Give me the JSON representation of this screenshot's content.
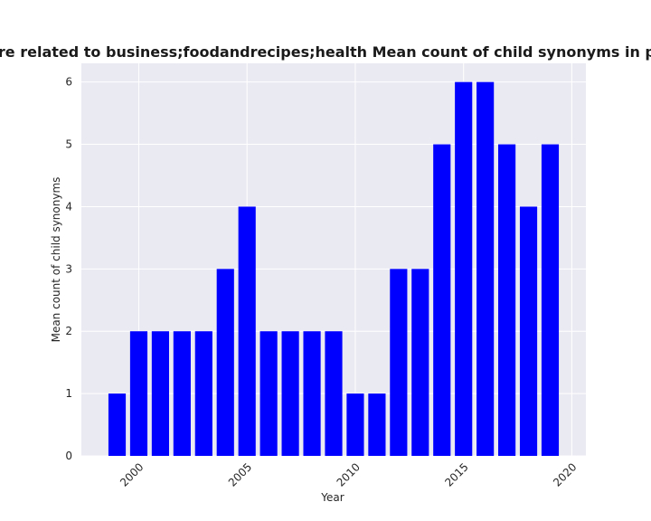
{
  "chart_data": {
    "type": "bar",
    "title": "Categories are related to business;foodandrecipes;health Mean count of child synonyms in privacy policies",
    "xlabel": "Year",
    "ylabel": "Mean count of child synonyms",
    "x": [
      1999,
      2000,
      2001,
      2002,
      2003,
      2004,
      2005,
      2006,
      2007,
      2008,
      2009,
      2010,
      2011,
      2012,
      2013,
      2014,
      2015,
      2016,
      2017,
      2018,
      2019
    ],
    "values": [
      1,
      2,
      2,
      2,
      2,
      3,
      4,
      2,
      2,
      2,
      2,
      1,
      1,
      3,
      3,
      5,
      6,
      6,
      5,
      4,
      5
    ],
    "xticks": [
      2000,
      2005,
      2010,
      2015,
      2020
    ],
    "yticks": [
      0,
      1,
      2,
      3,
      4,
      5,
      6
    ],
    "xlim": [
      1997.35,
      2020.65
    ],
    "ylim": [
      0,
      6.3
    ],
    "grid": true,
    "colors": {
      "bar": "#0000ff",
      "plot_background": "#eaeaf2",
      "grid": "#ffffff"
    }
  }
}
